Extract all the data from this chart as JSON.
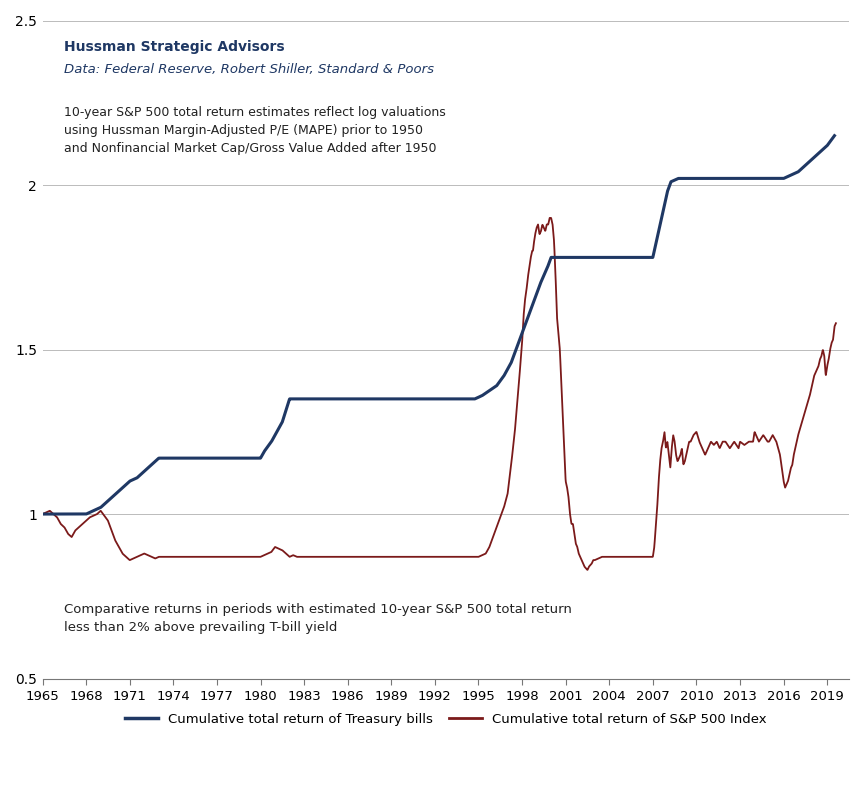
{
  "title_bold": "Hussman Strategic Advisors",
  "title_italic": "Data: Federal Reserve, Robert Shiller, Standard & Poors",
  "annotation1": "10-year S&P 500 total return estimates reflect log valuations\nusing Hussman Margin-Adjusted P/E (MAPE) prior to 1950\nand Nonfinancial Market Cap/Gross Value Added after 1950",
  "annotation2": "Comparative returns in periods with estimated 10-year S&P 500 total return\nless than 2% above prevailing T-bill yield",
  "legend1": "Cumulative total return of Treasury bills",
  "legend2": "Cumulative total return of S&P 500 Index",
  "tbill_color": "#1F3864",
  "sp500_color": "#7B1A1A",
  "background_color": "#FFFFFF",
  "ylim": [
    0.5,
    2.5
  ],
  "yticks": [
    0.5,
    1.0,
    1.5,
    2.0,
    2.5
  ],
  "xtick_start": 1965,
  "xtick_end": 2019,
  "xtick_step": 3,
  "tbill_data": [
    [
      1965.0,
      1.0
    ],
    [
      1966.75,
      1.0
    ],
    [
      1968.0,
      1.0
    ],
    [
      1968.5,
      1.01
    ],
    [
      1969.0,
      1.02
    ],
    [
      1969.5,
      1.04
    ],
    [
      1970.0,
      1.06
    ],
    [
      1970.5,
      1.08
    ],
    [
      1971.0,
      1.1
    ],
    [
      1971.5,
      1.11
    ],
    [
      1972.0,
      1.13
    ],
    [
      1972.5,
      1.15
    ],
    [
      1973.0,
      1.17
    ],
    [
      1973.25,
      1.17
    ],
    [
      1974.0,
      1.17
    ],
    [
      1980.0,
      1.17
    ],
    [
      1980.25,
      1.19
    ],
    [
      1980.75,
      1.22
    ],
    [
      1981.5,
      1.28
    ],
    [
      1982.0,
      1.35
    ],
    [
      1982.25,
      1.35
    ],
    [
      1986.0,
      1.35
    ],
    [
      1987.0,
      1.35
    ],
    [
      1993.0,
      1.35
    ],
    [
      1994.75,
      1.35
    ],
    [
      1995.25,
      1.36
    ],
    [
      1995.75,
      1.375
    ],
    [
      1996.25,
      1.39
    ],
    [
      1996.75,
      1.42
    ],
    [
      1997.25,
      1.46
    ],
    [
      1997.75,
      1.52
    ],
    [
      1998.25,
      1.58
    ],
    [
      1998.75,
      1.64
    ],
    [
      1999.25,
      1.7
    ],
    [
      1999.75,
      1.75
    ],
    [
      2000.0,
      1.78
    ],
    [
      2000.5,
      1.78
    ],
    [
      2001.0,
      1.78
    ],
    [
      2001.5,
      1.78
    ],
    [
      2002.0,
      1.78
    ],
    [
      2002.5,
      1.78
    ],
    [
      2003.0,
      1.78
    ],
    [
      2004.0,
      1.78
    ],
    [
      2007.0,
      1.78
    ],
    [
      2007.25,
      1.83
    ],
    [
      2007.5,
      1.88
    ],
    [
      2007.75,
      1.93
    ],
    [
      2008.0,
      1.98
    ],
    [
      2008.25,
      2.01
    ],
    [
      2008.75,
      2.02
    ],
    [
      2009.0,
      2.02
    ],
    [
      2015.0,
      2.02
    ],
    [
      2015.25,
      2.02
    ],
    [
      2016.0,
      2.02
    ],
    [
      2016.5,
      2.03
    ],
    [
      2017.0,
      2.04
    ],
    [
      2017.5,
      2.06
    ],
    [
      2018.0,
      2.08
    ],
    [
      2018.5,
      2.1
    ],
    [
      2019.0,
      2.12
    ],
    [
      2019.5,
      2.15
    ]
  ],
  "sp500_data": [
    [
      1965.0,
      1.0
    ],
    [
      1965.5,
      1.01
    ],
    [
      1966.0,
      0.99
    ],
    [
      1966.25,
      0.97
    ],
    [
      1966.5,
      0.96
    ],
    [
      1966.75,
      0.94
    ],
    [
      1967.0,
      0.93
    ],
    [
      1967.25,
      0.95
    ],
    [
      1967.5,
      0.96
    ],
    [
      1967.75,
      0.97
    ],
    [
      1968.0,
      0.98
    ],
    [
      1968.25,
      0.99
    ],
    [
      1968.75,
      1.0
    ],
    [
      1969.0,
      1.01
    ],
    [
      1969.5,
      0.98
    ],
    [
      1969.75,
      0.95
    ],
    [
      1970.0,
      0.92
    ],
    [
      1970.25,
      0.9
    ],
    [
      1970.5,
      0.88
    ],
    [
      1970.75,
      0.87
    ],
    [
      1971.0,
      0.86
    ],
    [
      1971.25,
      0.865
    ],
    [
      1971.5,
      0.87
    ],
    [
      1971.75,
      0.875
    ],
    [
      1972.0,
      0.88
    ],
    [
      1972.25,
      0.875
    ],
    [
      1972.5,
      0.87
    ],
    [
      1972.75,
      0.865
    ],
    [
      1973.0,
      0.87
    ],
    [
      1973.25,
      0.87
    ],
    [
      1974.0,
      0.87
    ],
    [
      1980.0,
      0.87
    ],
    [
      1980.25,
      0.875
    ],
    [
      1980.5,
      0.88
    ],
    [
      1980.75,
      0.885
    ],
    [
      1981.0,
      0.9
    ],
    [
      1981.25,
      0.895
    ],
    [
      1981.5,
      0.89
    ],
    [
      1981.75,
      0.88
    ],
    [
      1982.0,
      0.87
    ],
    [
      1982.25,
      0.875
    ],
    [
      1982.5,
      0.87
    ],
    [
      1983.0,
      0.87
    ],
    [
      1986.0,
      0.87
    ],
    [
      1987.0,
      0.87
    ],
    [
      1993.0,
      0.87
    ],
    [
      1994.75,
      0.87
    ],
    [
      1995.0,
      0.87
    ],
    [
      1995.25,
      0.875
    ],
    [
      1995.5,
      0.88
    ],
    [
      1995.75,
      0.9
    ],
    [
      1996.0,
      0.93
    ],
    [
      1996.25,
      0.96
    ],
    [
      1996.5,
      0.99
    ],
    [
      1996.75,
      1.02
    ],
    [
      1997.0,
      1.06
    ],
    [
      1997.25,
      1.15
    ],
    [
      1997.5,
      1.25
    ],
    [
      1997.75,
      1.38
    ],
    [
      1998.0,
      1.52
    ],
    [
      1998.1,
      1.6
    ],
    [
      1998.2,
      1.65
    ],
    [
      1998.3,
      1.68
    ],
    [
      1998.4,
      1.72
    ],
    [
      1998.5,
      1.75
    ],
    [
      1998.6,
      1.78
    ],
    [
      1998.7,
      1.8
    ],
    [
      1998.75,
      1.8
    ],
    [
      1998.8,
      1.82
    ],
    [
      1998.9,
      1.85
    ],
    [
      1999.0,
      1.87
    ],
    [
      1999.1,
      1.88
    ],
    [
      1999.2,
      1.85
    ],
    [
      1999.3,
      1.86
    ],
    [
      1999.4,
      1.88
    ],
    [
      1999.5,
      1.87
    ],
    [
      1999.6,
      1.86
    ],
    [
      1999.7,
      1.88
    ],
    [
      1999.8,
      1.88
    ],
    [
      1999.9,
      1.9
    ],
    [
      2000.0,
      1.9
    ],
    [
      2000.1,
      1.88
    ],
    [
      2000.2,
      1.83
    ],
    [
      2000.3,
      1.73
    ],
    [
      2000.4,
      1.6
    ],
    [
      2000.5,
      1.55
    ],
    [
      2000.6,
      1.5
    ],
    [
      2000.7,
      1.4
    ],
    [
      2000.8,
      1.3
    ],
    [
      2000.9,
      1.2
    ],
    [
      2001.0,
      1.1
    ],
    [
      2001.1,
      1.08
    ],
    [
      2001.2,
      1.05
    ],
    [
      2001.3,
      1.0
    ],
    [
      2001.4,
      0.97
    ],
    [
      2001.5,
      0.97
    ],
    [
      2001.6,
      0.94
    ],
    [
      2001.7,
      0.91
    ],
    [
      2001.8,
      0.9
    ],
    [
      2001.9,
      0.88
    ],
    [
      2002.0,
      0.87
    ],
    [
      2002.1,
      0.86
    ],
    [
      2002.2,
      0.85
    ],
    [
      2002.3,
      0.84
    ],
    [
      2002.4,
      0.835
    ],
    [
      2002.5,
      0.83
    ],
    [
      2002.6,
      0.84
    ],
    [
      2002.7,
      0.845
    ],
    [
      2002.8,
      0.85
    ],
    [
      2002.9,
      0.86
    ],
    [
      2003.0,
      0.86
    ],
    [
      2003.5,
      0.87
    ],
    [
      2004.0,
      0.87
    ],
    [
      2007.0,
      0.87
    ],
    [
      2007.1,
      0.9
    ],
    [
      2007.2,
      0.96
    ],
    [
      2007.3,
      1.02
    ],
    [
      2007.4,
      1.1
    ],
    [
      2007.5,
      1.16
    ],
    [
      2007.6,
      1.2
    ],
    [
      2007.7,
      1.22
    ],
    [
      2007.8,
      1.25
    ],
    [
      2007.9,
      1.2
    ],
    [
      2008.0,
      1.22
    ],
    [
      2008.1,
      1.18
    ],
    [
      2008.2,
      1.14
    ],
    [
      2008.3,
      1.2
    ],
    [
      2008.4,
      1.24
    ],
    [
      2008.5,
      1.22
    ],
    [
      2008.6,
      1.18
    ],
    [
      2008.7,
      1.16
    ],
    [
      2008.8,
      1.17
    ],
    [
      2008.9,
      1.18
    ],
    [
      2009.0,
      1.2
    ],
    [
      2009.1,
      1.15
    ],
    [
      2009.2,
      1.16
    ],
    [
      2009.3,
      1.18
    ],
    [
      2009.4,
      1.2
    ],
    [
      2009.5,
      1.22
    ],
    [
      2009.6,
      1.22
    ],
    [
      2009.7,
      1.23
    ],
    [
      2009.8,
      1.24
    ],
    [
      2010.0,
      1.25
    ],
    [
      2010.2,
      1.22
    ],
    [
      2010.4,
      1.2
    ],
    [
      2010.6,
      1.18
    ],
    [
      2010.8,
      1.2
    ],
    [
      2011.0,
      1.22
    ],
    [
      2011.2,
      1.21
    ],
    [
      2011.4,
      1.22
    ],
    [
      2011.6,
      1.2
    ],
    [
      2011.8,
      1.22
    ],
    [
      2012.0,
      1.22
    ],
    [
      2012.3,
      1.2
    ],
    [
      2012.6,
      1.22
    ],
    [
      2012.9,
      1.2
    ],
    [
      2013.0,
      1.22
    ],
    [
      2013.3,
      1.21
    ],
    [
      2013.6,
      1.22
    ],
    [
      2013.9,
      1.22
    ],
    [
      2014.0,
      1.25
    ],
    [
      2014.3,
      1.22
    ],
    [
      2014.6,
      1.24
    ],
    [
      2014.9,
      1.22
    ],
    [
      2015.0,
      1.22
    ],
    [
      2015.25,
      1.24
    ],
    [
      2015.5,
      1.22
    ],
    [
      2015.75,
      1.18
    ],
    [
      2016.0,
      1.1
    ],
    [
      2016.1,
      1.08
    ],
    [
      2016.2,
      1.09
    ],
    [
      2016.3,
      1.1
    ],
    [
      2016.4,
      1.12
    ],
    [
      2016.5,
      1.14
    ],
    [
      2016.6,
      1.15
    ],
    [
      2016.7,
      1.18
    ],
    [
      2016.8,
      1.2
    ],
    [
      2016.9,
      1.22
    ],
    [
      2017.0,
      1.24
    ],
    [
      2017.2,
      1.27
    ],
    [
      2017.4,
      1.3
    ],
    [
      2017.6,
      1.33
    ],
    [
      2017.8,
      1.36
    ],
    [
      2018.0,
      1.4
    ],
    [
      2018.1,
      1.42
    ],
    [
      2018.2,
      1.43
    ],
    [
      2018.3,
      1.44
    ],
    [
      2018.4,
      1.45
    ],
    [
      2018.5,
      1.47
    ],
    [
      2018.6,
      1.48
    ],
    [
      2018.7,
      1.5
    ],
    [
      2018.8,
      1.48
    ],
    [
      2018.9,
      1.42
    ],
    [
      2019.0,
      1.45
    ],
    [
      2019.1,
      1.47
    ],
    [
      2019.2,
      1.5
    ],
    [
      2019.3,
      1.52
    ],
    [
      2019.4,
      1.53
    ],
    [
      2019.5,
      1.57
    ],
    [
      2019.6,
      1.58
    ]
  ]
}
